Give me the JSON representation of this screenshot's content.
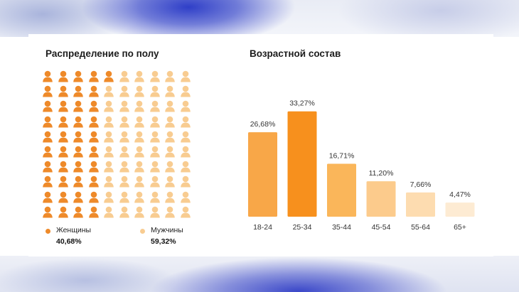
{
  "gender": {
    "title": "Распределение по полу",
    "women_label": "Женщины",
    "women_value": "40,68%",
    "men_label": "Мужчины",
    "men_value": "59,32%",
    "icon": "person-icon",
    "women_count": 41,
    "total": 100,
    "women_color": "#ee8a2a",
    "men_color": "#f8cc91"
  },
  "age": {
    "title": "Возрастной состав"
  },
  "chart_data": [
    {
      "type": "bar",
      "title": "Возрастной состав",
      "categories": [
        "18-24",
        "25-34",
        "35-44",
        "45-54",
        "55-64",
        "65+"
      ],
      "values": [
        26.68,
        33.27,
        16.71,
        11.2,
        7.66,
        4.47
      ],
      "labels": [
        "26,68%",
        "33,27%",
        "16,71%",
        "11,20%",
        "7,66%",
        "4,47%"
      ],
      "colors": [
        "#f8a748",
        "#f7901d",
        "#fab65a",
        "#fccb8c",
        "#fddcb0",
        "#fdebd3"
      ],
      "ylim": [
        0,
        35
      ],
      "grid": false,
      "legend": "none"
    },
    {
      "type": "pictogram",
      "title": "Распределение по полу",
      "categories": [
        "Женщины",
        "Мужчины"
      ],
      "values": [
        40.68,
        59.32
      ],
      "labels": [
        "40,68%",
        "59,32%"
      ],
      "colors": [
        "#ee8a2a",
        "#f8cc91"
      ],
      "legend": "bottom"
    }
  ]
}
